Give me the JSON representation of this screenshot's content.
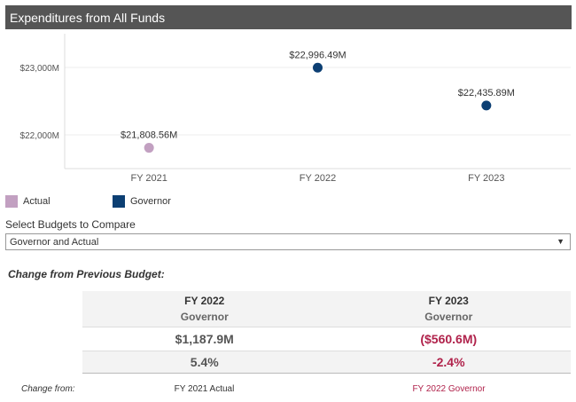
{
  "header": {
    "title": "Expenditures from All Funds"
  },
  "chart_data": {
    "type": "scatter",
    "categories": [
      "FY 2021",
      "FY 2022",
      "FY 2023"
    ],
    "series": [
      {
        "name": "Actual",
        "color": "#c2a0c1",
        "values": [
          21808.56,
          null,
          null
        ],
        "labels": [
          "$21,808.56M",
          "",
          ""
        ]
      },
      {
        "name": "Governor",
        "color": "#0c3f73",
        "values": [
          null,
          22996.49,
          22435.89
        ],
        "labels": [
          "",
          "$22,996.49M",
          "$22,435.89M"
        ]
      }
    ],
    "yticks": [
      22000,
      23000
    ],
    "ytick_labels": [
      "$22,000M",
      "$23,000M"
    ],
    "ylim": [
      21500,
      23500
    ],
    "grid": true,
    "legend": "bottom-left"
  },
  "selector": {
    "label": "Select Budgets to Compare",
    "value": "Governor and Actual"
  },
  "change": {
    "title": "Change from Previous Budget:",
    "columns": [
      {
        "fy": "FY 2022",
        "budget": "Governor",
        "amount": "$1,187.9M",
        "percent": "5.4%",
        "from": "FY 2021 Actual",
        "negative": false
      },
      {
        "fy": "FY 2023",
        "budget": "Governor",
        "amount": "($560.6M)",
        "percent": "-2.4%",
        "from": "FY 2022 Governor",
        "negative": true
      }
    ],
    "change_from_label": "Change from:"
  }
}
